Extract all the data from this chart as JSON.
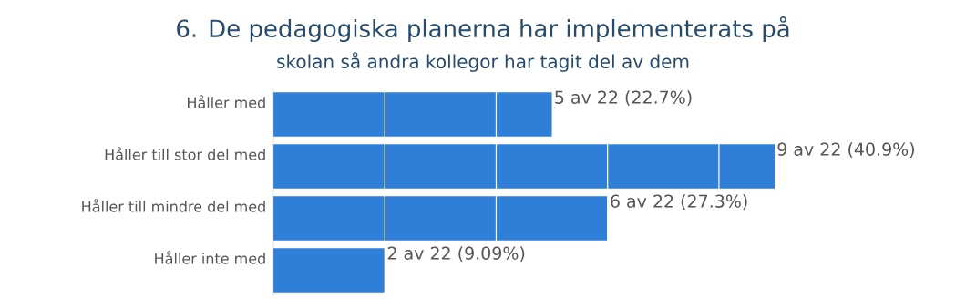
{
  "chart_data": {
    "type": "bar",
    "orientation": "horizontal",
    "title": "6. De pedagogiska planerna har implementerats på",
    "subtitle": "skolan så andra kollegor har tagit del av dem",
    "categories": [
      "Håller med",
      "Håller till stor del med",
      "Håller till mindre del med",
      "Håller inte med"
    ],
    "values": [
      5,
      9,
      6,
      2
    ],
    "value_labels": [
      "5 av 22 (22.7%)",
      "9 av 22 (40.9%)",
      "6 av 22 (27.3%)",
      "2 av 22 (9.09%)"
    ],
    "color": "#2f7ed8",
    "xticks": [
      {
        "value": 2,
        "label": null
      },
      {
        "value": 4,
        "label": null
      },
      {
        "value": 6,
        "label": null
      },
      {
        "value": 8,
        "label": null
      }
    ],
    "grid": "x",
    "tick_labels": "y"
  }
}
